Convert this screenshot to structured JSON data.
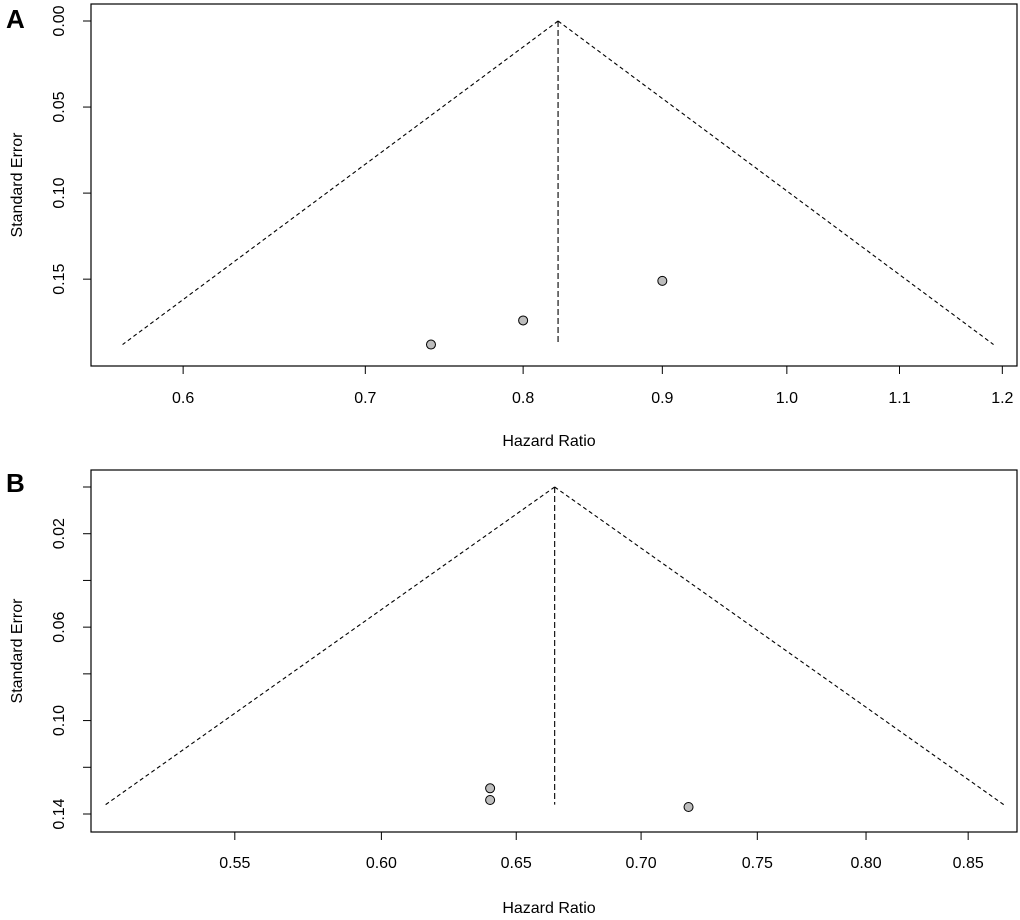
{
  "chart_data": [
    {
      "panel": "A",
      "type": "scatter",
      "xlabel": "Hazard Ratio",
      "ylabel": "Standard Error",
      "x_scale": "log",
      "y_reversed": true,
      "xlim": [
        0.555,
        1.215
      ],
      "ylim": [
        0,
        0.19
      ],
      "x_ticks": [
        0.6,
        0.7,
        0.8,
        0.9,
        1.0,
        1.1,
        1.2
      ],
      "x_tick_labels": [
        "0.6",
        "0.7",
        "0.8",
        "0.9",
        "1.0",
        "1.1",
        "1.2"
      ],
      "y_ticks": [
        0,
        0.05,
        0.1,
        0.15
      ],
      "y_tick_labels": [
        "0.00",
        "0.05",
        "0.10",
        "0.15"
      ],
      "pooled_estimate": 0.824,
      "funnel_se_max": 0.188,
      "points": [
        {
          "x": 0.74,
          "y": 0.188
        },
        {
          "x": 0.8,
          "y": 0.174
        },
        {
          "x": 0.9,
          "y": 0.151
        }
      ],
      "grid": false
    },
    {
      "panel": "B",
      "type": "scatter",
      "xlabel": "Hazard Ratio",
      "ylabel": "Standard Error",
      "x_scale": "log",
      "y_reversed": true,
      "xlim": [
        0.505,
        0.875
      ],
      "ylim": [
        0,
        0.14
      ],
      "x_ticks": [
        0.55,
        0.6,
        0.65,
        0.7,
        0.75,
        0.8,
        0.85
      ],
      "x_tick_labels": [
        "0.55",
        "0.60",
        "0.65",
        "0.70",
        "0.75",
        "0.80",
        "0.85"
      ],
      "y_ticks": [
        0,
        0.02,
        0.04,
        0.06,
        0.08,
        0.1,
        0.12,
        0.14
      ],
      "y_tick_labels": [
        "",
        "0.02",
        "",
        "0.06",
        "",
        "0.10",
        "",
        "0.14"
      ],
      "pooled_estimate": 0.665,
      "funnel_se_max": 0.136,
      "points": [
        {
          "x": 0.64,
          "y": 0.129
        },
        {
          "x": 0.64,
          "y": 0.134
        },
        {
          "x": 0.72,
          "y": 0.137
        }
      ],
      "grid": false
    }
  ]
}
